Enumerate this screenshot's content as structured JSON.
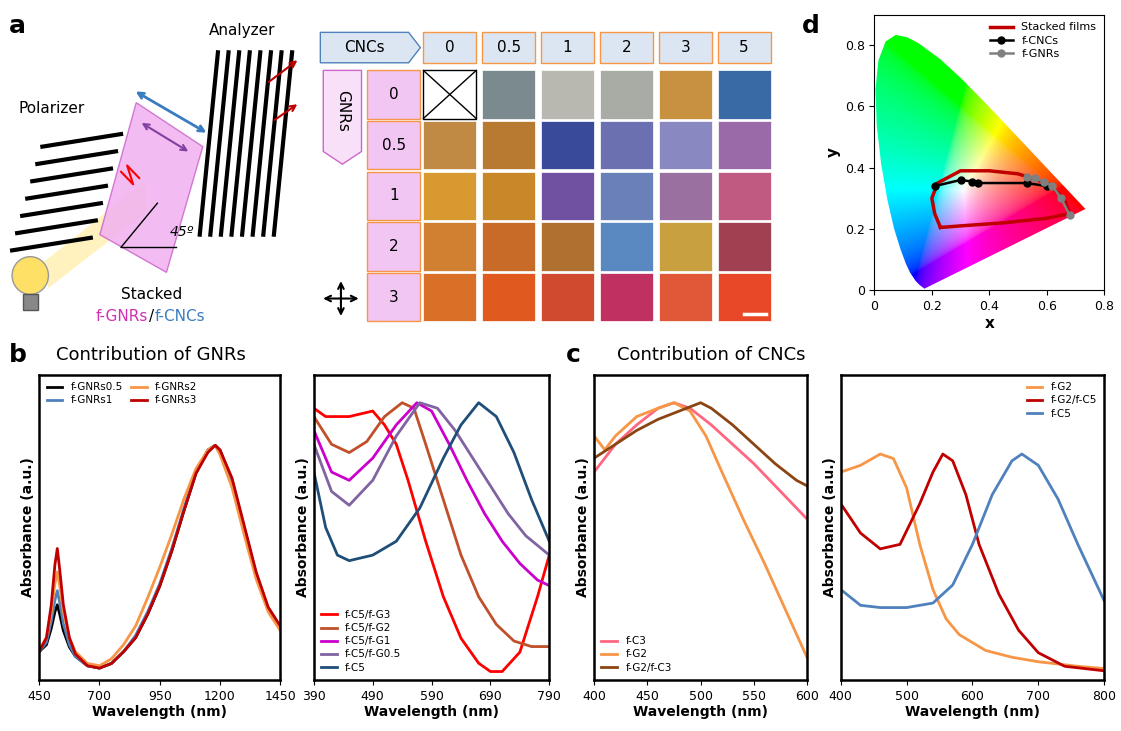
{
  "panel_labels": [
    "a",
    "b",
    "c",
    "d"
  ],
  "schematic": {
    "polarizer": "Polarizer",
    "analyzer": "Analyzer",
    "angle": "45º",
    "film_label": [
      "Stacked",
      "f-GNRs",
      "/",
      "f-CNCs"
    ]
  },
  "image_grid": {
    "row_header": "GNRs",
    "column_header": "CNCs",
    "columns": [
      0,
      0.5,
      1,
      2,
      3,
      5
    ],
    "rows": [
      0,
      0.5,
      1,
      2,
      3
    ],
    "colors": [
      [
        null,
        "#7a8a8e",
        "#b8b8b0",
        "#a8aca5",
        "#c8913f",
        "#3a6aa6"
      ],
      [
        "#c08a45",
        "#b87a30",
        "#3a4a9a",
        "#6a70b0",
        "#8a88c0",
        "#9a6aa8"
      ],
      [
        "#d89a30",
        "#c8882a",
        "#7050a0",
        "#6a80b8",
        "#9a70a0",
        "#c05a80"
      ],
      [
        "#d08030",
        "#c86a28",
        "#b07030",
        "#5a88c0",
        "#c8a040",
        "#a04050"
      ],
      [
        "#d87028",
        "#e05a20",
        "#d04a30",
        "#c03060",
        "#e05838",
        "#e84828"
      ]
    ]
  },
  "section_titles": {
    "b": "Contribution of GNRs",
    "c": "Contribution of CNCs"
  },
  "chart_data": [
    {
      "type": "line",
      "x_label": "Wavelength (nm)",
      "y_label": "Absorbance (a.u.)",
      "xlim": [
        450,
        1450
      ],
      "xticks": [
        450,
        700,
        950,
        1200,
        1450
      ],
      "ylim": [
        0,
        1.3
      ],
      "yticks": [],
      "tick_labels": "x",
      "legend": "upper left",
      "series": [
        {
          "name": "f-GNRs0.5",
          "color": "#000000",
          "x": [
            450,
            480,
            500,
            515,
            525,
            535,
            550,
            575,
            600,
            650,
            700,
            750,
            800,
            850,
            900,
            950,
            1000,
            1050,
            1100,
            1150,
            1180,
            1200,
            1250,
            1300,
            1350,
            1400,
            1450
          ],
          "values": [
            0.12,
            0.15,
            0.22,
            0.29,
            0.32,
            0.28,
            0.21,
            0.14,
            0.1,
            0.06,
            0.05,
            0.07,
            0.12,
            0.18,
            0.28,
            0.4,
            0.55,
            0.72,
            0.88,
            0.98,
            1.0,
            0.98,
            0.85,
            0.65,
            0.45,
            0.3,
            0.22
          ]
        },
        {
          "name": "f-GNRs1",
          "color": "#4f81bd",
          "x": [
            450,
            480,
            500,
            515,
            525,
            535,
            550,
            575,
            600,
            650,
            700,
            750,
            800,
            850,
            900,
            950,
            1000,
            1050,
            1100,
            1150,
            1180,
            1200,
            1250,
            1300,
            1350,
            1400,
            1450
          ],
          "values": [
            0.12,
            0.16,
            0.25,
            0.34,
            0.38,
            0.33,
            0.24,
            0.15,
            0.1,
            0.06,
            0.05,
            0.07,
            0.12,
            0.19,
            0.29,
            0.41,
            0.56,
            0.73,
            0.89,
            0.98,
            1.0,
            0.97,
            0.84,
            0.64,
            0.44,
            0.3,
            0.22
          ]
        },
        {
          "name": "f-GNRs2",
          "color": "#f79646",
          "x": [
            450,
            480,
            500,
            515,
            525,
            535,
            550,
            575,
            600,
            650,
            700,
            750,
            800,
            850,
            900,
            950,
            1000,
            1050,
            1100,
            1150,
            1180,
            1200,
            1250,
            1300,
            1350,
            1400,
            1450
          ],
          "values": [
            0.13,
            0.18,
            0.29,
            0.41,
            0.46,
            0.4,
            0.29,
            0.18,
            0.12,
            0.07,
            0.06,
            0.09,
            0.15,
            0.23,
            0.35,
            0.48,
            0.62,
            0.77,
            0.9,
            0.98,
            1.0,
            0.96,
            0.82,
            0.62,
            0.43,
            0.29,
            0.21
          ]
        },
        {
          "name": "f-GNRs3",
          "color": "#c00000",
          "x": [
            450,
            480,
            500,
            515,
            525,
            535,
            550,
            575,
            600,
            650,
            700,
            750,
            800,
            850,
            900,
            950,
            1000,
            1050,
            1100,
            1150,
            1180,
            1200,
            1250,
            1300,
            1350,
            1400,
            1450
          ],
          "values": [
            0.12,
            0.18,
            0.32,
            0.49,
            0.56,
            0.47,
            0.32,
            0.18,
            0.11,
            0.06,
            0.05,
            0.07,
            0.12,
            0.18,
            0.28,
            0.4,
            0.55,
            0.72,
            0.88,
            0.97,
            1.0,
            0.98,
            0.86,
            0.66,
            0.46,
            0.31,
            0.23
          ]
        }
      ]
    },
    {
      "type": "line",
      "x_label": "Wavelength (nm)",
      "y_label": "Absorbance (a.u.)",
      "xlim": [
        390,
        790
      ],
      "xticks": [
        390,
        490,
        590,
        690,
        790
      ],
      "ylim": [
        0,
        1.1
      ],
      "yticks": [],
      "tick_labels": "x",
      "legend": "lower left",
      "series": [
        {
          "name": "f-C5/f-G3",
          "color": "#ff0000",
          "x": [
            390,
            410,
            450,
            490,
            510,
            530,
            550,
            580,
            610,
            640,
            670,
            690,
            710,
            740,
            770,
            790
          ],
          "values": [
            0.98,
            0.95,
            0.95,
            0.97,
            0.92,
            0.85,
            0.72,
            0.5,
            0.3,
            0.15,
            0.06,
            0.03,
            0.03,
            0.1,
            0.3,
            0.45
          ]
        },
        {
          "name": "f-C5/f-G2",
          "color": "#c0502a",
          "x": [
            390,
            420,
            450,
            480,
            510,
            540,
            560,
            580,
            610,
            640,
            670,
            700,
            730,
            760,
            790
          ],
          "values": [
            0.95,
            0.85,
            0.82,
            0.86,
            0.95,
            1.0,
            0.98,
            0.85,
            0.65,
            0.45,
            0.3,
            0.2,
            0.14,
            0.12,
            0.12
          ]
        },
        {
          "name": "f-C5/f-G1",
          "color": "#cc00cc",
          "x": [
            390,
            420,
            450,
            490,
            530,
            565,
            590,
            620,
            650,
            680,
            710,
            740,
            770,
            790
          ],
          "values": [
            0.9,
            0.75,
            0.72,
            0.8,
            0.92,
            1.0,
            0.97,
            0.85,
            0.72,
            0.6,
            0.5,
            0.42,
            0.36,
            0.34
          ]
        },
        {
          "name": "f-C5/f-G0.5",
          "color": "#8064a2",
          "x": [
            390,
            420,
            450,
            490,
            530,
            570,
            600,
            630,
            660,
            690,
            720,
            750,
            790
          ],
          "values": [
            0.85,
            0.68,
            0.63,
            0.72,
            0.88,
            1.0,
            0.98,
            0.9,
            0.8,
            0.7,
            0.6,
            0.52,
            0.45
          ]
        },
        {
          "name": "f-C5",
          "color": "#1f4e79",
          "x": [
            390,
            410,
            430,
            450,
            490,
            530,
            570,
            610,
            640,
            670,
            700,
            730,
            760,
            790
          ],
          "values": [
            0.75,
            0.55,
            0.45,
            0.43,
            0.45,
            0.5,
            0.62,
            0.8,
            0.92,
            1.0,
            0.95,
            0.82,
            0.65,
            0.5
          ]
        }
      ]
    },
    {
      "type": "line",
      "x_label": "Wavelength (nm)",
      "y_label": "Absorbance (a.u.)",
      "xlim": [
        400,
        600
      ],
      "xticks": [
        400,
        450,
        500,
        550,
        600
      ],
      "ylim": [
        0,
        1.1
      ],
      "yticks": [],
      "tick_labels": "x",
      "legend": "lower left",
      "series": [
        {
          "name": "f-C3",
          "color": "#ff6680",
          "x": [
            400,
            420,
            440,
            460,
            475,
            490,
            510,
            530,
            550,
            570,
            590,
            600
          ],
          "values": [
            0.75,
            0.85,
            0.92,
            0.98,
            1.0,
            0.98,
            0.92,
            0.85,
            0.78,
            0.7,
            0.62,
            0.58
          ]
        },
        {
          "name": "f-G2",
          "color": "#f79646",
          "x": [
            400,
            410,
            420,
            440,
            460,
            475,
            490,
            505,
            520,
            540,
            560,
            580,
            600
          ],
          "values": [
            0.88,
            0.83,
            0.88,
            0.95,
            0.98,
            1.0,
            0.97,
            0.88,
            0.75,
            0.58,
            0.42,
            0.25,
            0.08
          ]
        },
        {
          "name": "f-G2/f-C3",
          "color": "#8b4513",
          "x": [
            400,
            420,
            440,
            460,
            480,
            500,
            510,
            530,
            550,
            570,
            590,
            600
          ],
          "values": [
            0.8,
            0.85,
            0.9,
            0.94,
            0.97,
            1.0,
            0.98,
            0.92,
            0.85,
            0.78,
            0.72,
            0.7
          ]
        }
      ]
    },
    {
      "type": "line",
      "x_label": "Wavelength (nm)",
      "y_label": "Absorbance (a.u.)",
      "xlim": [
        400,
        800
      ],
      "xticks": [
        400,
        500,
        600,
        700,
        800
      ],
      "ylim": [
        0,
        1.35
      ],
      "yticks": [],
      "tick_labels": "x",
      "legend": "upper right",
      "series": [
        {
          "name": "f-G2",
          "color": "#f79646",
          "x": [
            400,
            430,
            460,
            480,
            500,
            520,
            540,
            560,
            580,
            620,
            660,
            700,
            760,
            800
          ],
          "values": [
            0.92,
            0.95,
            1.0,
            0.98,
            0.85,
            0.6,
            0.4,
            0.27,
            0.2,
            0.13,
            0.1,
            0.08,
            0.06,
            0.05
          ]
        },
        {
          "name": "f-G2/f-C5",
          "color": "#c00000",
          "x": [
            400,
            430,
            460,
            490,
            520,
            540,
            555,
            570,
            590,
            610,
            640,
            670,
            700,
            740,
            800
          ],
          "values": [
            0.78,
            0.65,
            0.58,
            0.6,
            0.78,
            0.92,
            1.0,
            0.97,
            0.82,
            0.6,
            0.38,
            0.22,
            0.12,
            0.06,
            0.04
          ]
        },
        {
          "name": "f-C5",
          "color": "#4f81bd",
          "x": [
            400,
            430,
            460,
            500,
            540,
            570,
            600,
            630,
            660,
            675,
            700,
            730,
            760,
            800
          ],
          "values": [
            0.4,
            0.33,
            0.32,
            0.32,
            0.34,
            0.42,
            0.6,
            0.82,
            0.97,
            1.0,
            0.95,
            0.8,
            0.6,
            0.35
          ]
        }
      ]
    },
    {
      "type": "line",
      "x_label": "x",
      "y_label": "y",
      "xlim": [
        0,
        0.8
      ],
      "xticks": [
        0,
        0.2,
        0.4,
        0.6,
        0.8
      ],
      "ylim": [
        0,
        0.9
      ],
      "yticks": [
        0,
        0.2,
        0.4,
        0.6,
        0.8
      ],
      "legend": "upper right",
      "locus": {
        "x": [
          0.1741,
          0.1566,
          0.144,
          0.1241,
          0.1096,
          0.0913,
          0.0687,
          0.0454,
          0.0235,
          0.0082,
          0.0039,
          0.0139,
          0.0389,
          0.0743,
          0.1142,
          0.1547,
          0.2296,
          0.3016,
          0.3731,
          0.4441,
          0.5125,
          0.5752,
          0.627,
          0.6915,
          0.7347
        ],
        "y": [
          0.005,
          0.0177,
          0.0297,
          0.0578,
          0.0868,
          0.1327,
          0.2007,
          0.295,
          0.4127,
          0.5384,
          0.6548,
          0.7502,
          0.812,
          0.8338,
          0.8262,
          0.8059,
          0.7543,
          0.6923,
          0.6245,
          0.5547,
          0.4866,
          0.4242,
          0.3725,
          0.3083,
          0.2653
        ]
      },
      "series": [
        {
          "name": "Stacked films",
          "color": "#c00000",
          "line_style": "solid",
          "x": [
            0.23,
            0.21,
            0.2,
            0.22,
            0.3,
            0.4,
            0.5,
            0.6,
            0.66,
            0.68,
            0.6,
            0.45,
            0.3,
            0.23
          ],
          "values": [
            0.205,
            0.25,
            0.3,
            0.35,
            0.39,
            0.39,
            0.38,
            0.35,
            0.3,
            0.25,
            0.235,
            0.22,
            0.21,
            0.205
          ]
        },
        {
          "name": "f-CNCs",
          "color": "#000000",
          "line_style": "solid",
          "marker": "circle",
          "x": [
            0.21,
            0.3,
            0.34,
            0.36,
            0.53,
            0.6
          ],
          "values": [
            0.34,
            0.36,
            0.355,
            0.35,
            0.35,
            0.34
          ]
        },
        {
          "name": "f-GNRs",
          "color": "#808080",
          "line_style": "solid",
          "marker": "circle",
          "x": [
            0.53,
            0.56,
            0.59,
            0.62,
            0.65,
            0.68
          ],
          "values": [
            0.37,
            0.365,
            0.355,
            0.34,
            0.3,
            0.245
          ]
        }
      ]
    }
  ]
}
